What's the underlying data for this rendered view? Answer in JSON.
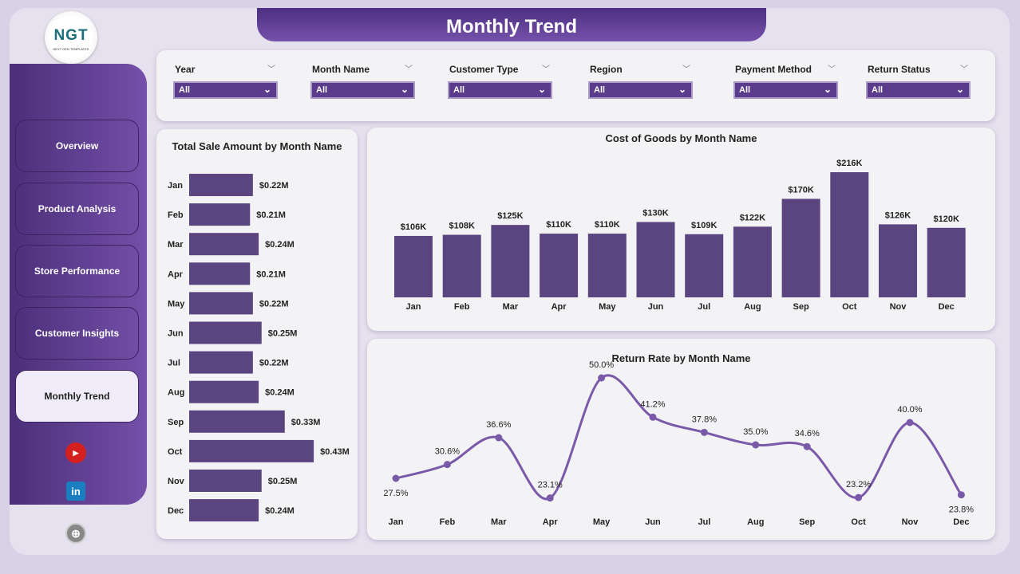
{
  "header": {
    "title": "Monthly Trend"
  },
  "logo": {
    "text": "NGT",
    "subtitle": "NEXT GEN TEMPLATES"
  },
  "nav": {
    "items": [
      {
        "label": "Overview"
      },
      {
        "label": "Product Analysis"
      },
      {
        "label": "Store Performance"
      },
      {
        "label": "Customer Insights"
      },
      {
        "label": "Monthly Trend",
        "active": true
      }
    ]
  },
  "social": [
    "youtube-icon",
    "linkedin-icon",
    "globe-icon"
  ],
  "filters": [
    {
      "label": "Year",
      "value": "All"
    },
    {
      "label": "Month Name",
      "value": "All"
    },
    {
      "label": "Customer Type",
      "value": "All"
    },
    {
      "label": "Region",
      "value": "All"
    },
    {
      "label": "Payment Method",
      "value": "All"
    },
    {
      "label": "Return Status",
      "value": "All"
    }
  ],
  "colors": {
    "accent": "#5a4580",
    "line": "#7a5aa8",
    "nav": "#5b3d8f"
  },
  "chart_data": [
    {
      "type": "bar",
      "orientation": "horizontal",
      "title": "Total Sale Amount by Month Name",
      "categories": [
        "Jan",
        "Feb",
        "Mar",
        "Apr",
        "May",
        "Jun",
        "Jul",
        "Aug",
        "Sep",
        "Oct",
        "Nov",
        "Dec"
      ],
      "values": [
        0.22,
        0.21,
        0.24,
        0.21,
        0.22,
        0.25,
        0.22,
        0.24,
        0.33,
        0.43,
        0.25,
        0.24
      ],
      "labels": [
        "$0.22M",
        "$0.21M",
        "$0.24M",
        "$0.21M",
        "$0.22M",
        "$0.25M",
        "$0.22M",
        "$0.24M",
        "$0.33M",
        "$0.43M",
        "$0.25M",
        "$0.24M"
      ],
      "unit": "$M"
    },
    {
      "type": "bar",
      "title": "Cost of Goods by Month Name",
      "categories": [
        "Jan",
        "Feb",
        "Mar",
        "Apr",
        "May",
        "Jun",
        "Jul",
        "Aug",
        "Sep",
        "Oct",
        "Nov",
        "Dec"
      ],
      "values": [
        106,
        108,
        125,
        110,
        110,
        130,
        109,
        122,
        170,
        216,
        126,
        120
      ],
      "labels": [
        "$106K",
        "$108K",
        "$125K",
        "$110K",
        "$110K",
        "$130K",
        "$109K",
        "$122K",
        "$170K",
        "$216K",
        "$126K",
        "$120K"
      ],
      "unit": "$K"
    },
    {
      "type": "line",
      "title": "Return Rate by Month Name",
      "categories": [
        "Jan",
        "Feb",
        "Mar",
        "Apr",
        "May",
        "Jun",
        "Jul",
        "Aug",
        "Sep",
        "Oct",
        "Nov",
        "Dec"
      ],
      "values": [
        27.5,
        30.6,
        36.6,
        23.1,
        50.0,
        41.2,
        37.8,
        35.0,
        34.6,
        23.2,
        40.0,
        23.8
      ],
      "labels": [
        "27.5%",
        "30.6%",
        "36.6%",
        "23.1%",
        "50.0%",
        "41.2%",
        "37.8%",
        "35.0%",
        "34.6%",
        "23.2%",
        "40.0%",
        "23.8%"
      ],
      "unit": "%"
    }
  ]
}
